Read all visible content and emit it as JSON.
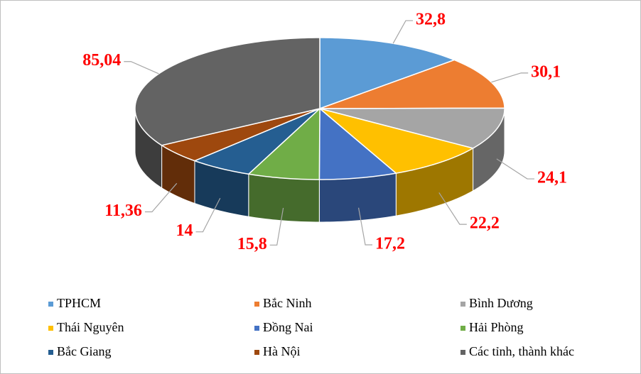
{
  "chart_data": {
    "type": "pie3d",
    "categories": [
      "TPHCM",
      "Bắc Ninh",
      "Bình Dương",
      "Thái Nguyên",
      "Đồng Nai",
      "Hải Phòng",
      "Bắc Giang",
      "Hà Nội",
      "Các tỉnh, thành khác"
    ],
    "values": [
      32.8,
      30.1,
      24.1,
      22.2,
      17.2,
      15.8,
      14,
      11.36,
      85.04
    ],
    "value_labels": [
      "32,8",
      "30,1",
      "24,1",
      "22,2",
      "17,2",
      "15,8",
      "14",
      "11,36",
      "85,04"
    ],
    "colors": [
      "#5b9bd5",
      "#ed7d31",
      "#a5a5a5",
      "#ffc000",
      "#4472c4",
      "#70ad47",
      "#255e91",
      "#9e480e",
      "#636363"
    ],
    "legend": "bottom"
  }
}
